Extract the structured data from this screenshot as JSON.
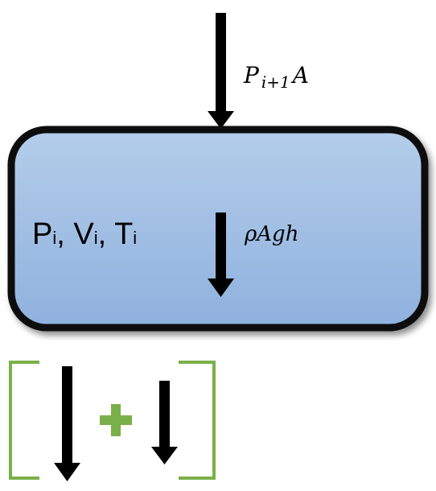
{
  "top_force": {
    "symbol": "P",
    "subscript": "i+1",
    "suffix": "A"
  },
  "state": {
    "p": "P",
    "p_sub": "i",
    "v": "V",
    "v_sub": "i",
    "t": "T",
    "t_sub": "i",
    "sep": ", "
  },
  "weight_force": {
    "label": "ρAgh"
  },
  "colors": {
    "box_fill_top": "#b4cdea",
    "box_fill_bottom": "#8fb1de",
    "box_border": "#111111",
    "bracket": "#7ab04a",
    "plus": "#7ab04a",
    "arrow": "#000000"
  }
}
